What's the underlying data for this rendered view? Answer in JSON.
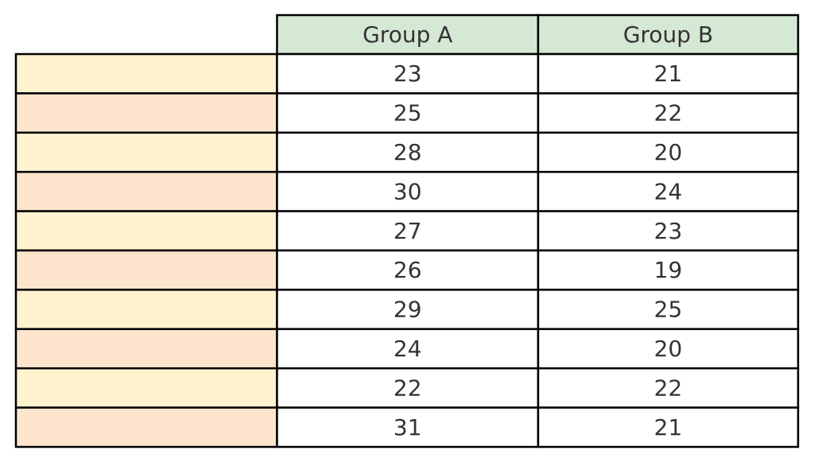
{
  "table": {
    "columns": [
      "Group A",
      "Group B"
    ],
    "rows": [
      [
        23,
        21
      ],
      [
        25,
        22
      ],
      [
        28,
        20
      ],
      [
        30,
        24
      ],
      [
        27,
        23
      ],
      [
        26,
        19
      ],
      [
        29,
        25
      ],
      [
        24,
        20
      ],
      [
        22,
        22
      ],
      [
        31,
        21
      ]
    ]
  }
}
